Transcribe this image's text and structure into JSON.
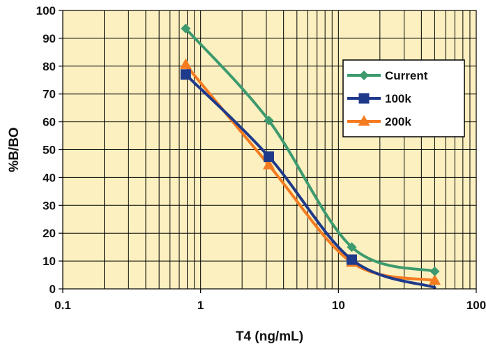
{
  "chart_data": {
    "type": "line",
    "title": "",
    "xlabel": "T4 (ng/mL)",
    "ylabel": "%B/BO",
    "x_scale": "log",
    "xlim": [
      0.1,
      100
    ],
    "ylim": [
      0,
      100
    ],
    "x_ticks": [
      {
        "value": 0.1,
        "label": "0.1"
      },
      {
        "value": 1,
        "label": "1"
      },
      {
        "value": 10,
        "label": "10"
      },
      {
        "value": 100,
        "label": "100"
      }
    ],
    "y_ticks": [
      {
        "value": 0,
        "label": "0"
      },
      {
        "value": 10,
        "label": "10"
      },
      {
        "value": 20,
        "label": "20"
      },
      {
        "value": 30,
        "label": "30"
      },
      {
        "value": 40,
        "label": "40"
      },
      {
        "value": 50,
        "label": "50"
      },
      {
        "value": 60,
        "label": "60"
      },
      {
        "value": 70,
        "label": "70"
      },
      {
        "value": 80,
        "label": "80"
      },
      {
        "value": 90,
        "label": "90"
      },
      {
        "value": 100,
        "label": "100"
      }
    ],
    "grid": true,
    "legend_position": "right",
    "plot_background": "#FCF0C0",
    "series": [
      {
        "name": "Current",
        "color": "#3D9A6E",
        "marker": "diamond",
        "x": [
          0.78,
          3.125,
          12.5,
          50
        ],
        "y": [
          93.5,
          60.5,
          15,
          6.3
        ],
        "curve_tail_x": 50,
        "curve_tail_y": 6.3
      },
      {
        "name": "100k",
        "color": "#1F3A8A",
        "marker": "square",
        "x": [
          0.78,
          3.125,
          12.5,
          50
        ],
        "y": [
          77,
          47.5,
          10.5,
          0.5
        ],
        "hide_marker_indices": [
          3
        ]
      },
      {
        "name": "200k",
        "color": "#F47B20",
        "marker": "triangle",
        "x": [
          0.78,
          3.125,
          12.5,
          50
        ],
        "y": [
          80.5,
          44.5,
          9.5,
          3
        ]
      }
    ]
  }
}
